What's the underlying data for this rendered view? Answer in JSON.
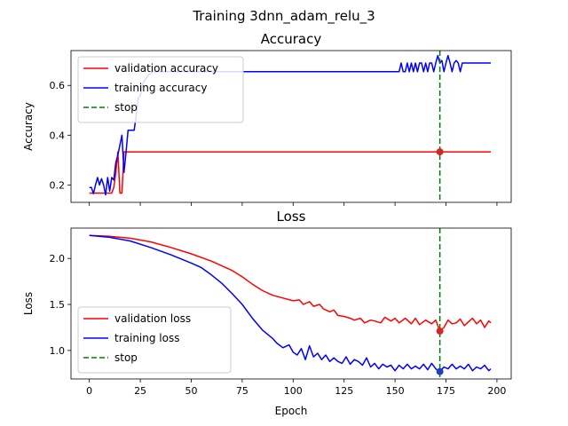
{
  "figure": {
    "suptitle": "Training 3dnn_adam_relu_3"
  },
  "chart_data": [
    {
      "type": "line",
      "title": "Accuracy",
      "xlabel": "",
      "ylabel": "Accuracy",
      "xlim": [
        -9,
        207
      ],
      "ylim": [
        0.13,
        0.74
      ],
      "xticks": [
        0,
        25,
        50,
        75,
        100,
        125,
        150,
        175,
        200
      ],
      "xticklabels_visible": false,
      "yticks": [
        0.2,
        0.4,
        0.6
      ],
      "yticklabels": [
        "0.2",
        "0.4",
        "0.6"
      ],
      "legend": {
        "placement": "top-left"
      },
      "stop_epoch": 172,
      "series": [
        {
          "name": "validation accuracy",
          "color": "#ff0000",
          "style": "solid",
          "points": [
            [
              0,
              0.167
            ],
            [
              1,
              0.167
            ],
            [
              2,
              0.167
            ],
            [
              3,
              0.167
            ],
            [
              4,
              0.167
            ],
            [
              5,
              0.167
            ],
            [
              6,
              0.167
            ],
            [
              7,
              0.167
            ],
            [
              8,
              0.167
            ],
            [
              9,
              0.167
            ],
            [
              10,
              0.167
            ],
            [
              11,
              0.167
            ],
            [
              12,
              0.19
            ],
            [
              13,
              0.25
            ],
            [
              14,
              0.333
            ],
            [
              15,
              0.167
            ],
            [
              16,
              0.167
            ],
            [
              17,
              0.333
            ],
            [
              20,
              0.333
            ],
            [
              40,
              0.333
            ],
            [
              80,
              0.333
            ],
            [
              120,
              0.333
            ],
            [
              160,
              0.333
            ],
            [
              172,
              0.333
            ],
            [
              185,
              0.333
            ],
            [
              197,
              0.333
            ]
          ]
        },
        {
          "name": "training accuracy",
          "color": "#0000ff",
          "style": "solid",
          "points": [
            [
              0,
              0.19
            ],
            [
              1,
              0.19
            ],
            [
              2,
              0.165
            ],
            [
              3,
              0.2
            ],
            [
              4,
              0.23
            ],
            [
              5,
              0.2
            ],
            [
              6,
              0.225
            ],
            [
              7,
              0.2
            ],
            [
              8,
              0.16
            ],
            [
              9,
              0.23
            ],
            [
              10,
              0.175
            ],
            [
              11,
              0.23
            ],
            [
              12,
              0.22
            ],
            [
              13,
              0.29
            ],
            [
              14,
              0.32
            ],
            [
              15,
              0.36
            ],
            [
              16,
              0.4
            ],
            [
              17,
              0.25
            ],
            [
              18,
              0.33
            ],
            [
              19,
              0.42
            ],
            [
              20,
              0.42
            ],
            [
              21,
              0.42
            ],
            [
              22,
              0.42
            ],
            [
              23,
              0.48
            ],
            [
              24,
              0.55
            ],
            [
              25,
              0.56
            ],
            [
              26,
              0.6
            ],
            [
              27,
              0.62
            ],
            [
              28,
              0.63
            ],
            [
              30,
              0.65
            ],
            [
              32,
              0.655
            ],
            [
              40,
              0.655
            ],
            [
              60,
              0.655
            ],
            [
              80,
              0.655
            ],
            [
              100,
              0.655
            ],
            [
              120,
              0.655
            ],
            [
              140,
              0.655
            ],
            [
              152,
              0.655
            ],
            [
              153,
              0.69
            ],
            [
              154,
              0.655
            ],
            [
              155,
              0.655
            ],
            [
              156,
              0.69
            ],
            [
              157,
              0.655
            ],
            [
              158,
              0.69
            ],
            [
              159,
              0.655
            ],
            [
              160,
              0.69
            ],
            [
              161,
              0.655
            ],
            [
              162,
              0.69
            ],
            [
              163,
              0.69
            ],
            [
              164,
              0.655
            ],
            [
              165,
              0.69
            ],
            [
              166,
              0.655
            ],
            [
              167,
              0.69
            ],
            [
              168,
              0.69
            ],
            [
              169,
              0.655
            ],
            [
              170,
              0.69
            ],
            [
              171,
              0.72
            ],
            [
              172,
              0.69
            ],
            [
              173,
              0.7
            ],
            [
              174,
              0.655
            ],
            [
              175,
              0.69
            ],
            [
              176,
              0.72
            ],
            [
              177,
              0.69
            ],
            [
              178,
              0.655
            ],
            [
              179,
              0.69
            ],
            [
              180,
              0.7
            ],
            [
              181,
              0.69
            ],
            [
              182,
              0.655
            ],
            [
              183,
              0.69
            ],
            [
              184,
              0.69
            ],
            [
              185,
              0.69
            ],
            [
              186,
              0.69
            ],
            [
              190,
              0.69
            ],
            [
              197,
              0.69
            ]
          ]
        }
      ],
      "stop_line": {
        "name": "stop",
        "color": "#008000",
        "style": "dashed"
      },
      "markers": [
        {
          "x": 172,
          "y": 0.333,
          "color": "#d62728"
        }
      ]
    },
    {
      "type": "line",
      "title": "Loss",
      "xlabel": "Epoch",
      "ylabel": "Loss",
      "xlim": [
        -9,
        207
      ],
      "ylim": [
        0.69,
        2.33
      ],
      "xticks": [
        0,
        25,
        50,
        75,
        100,
        125,
        150,
        175,
        200
      ],
      "xticklabels": [
        "0",
        "25",
        "50",
        "75",
        "100",
        "125",
        "150",
        "175",
        "200"
      ],
      "yticks": [
        1.0,
        1.5,
        2.0
      ],
      "yticklabels": [
        "1.0",
        "1.5",
        "2.0"
      ],
      "legend": {
        "placement": "bottom-left"
      },
      "stop_epoch": 172,
      "series": [
        {
          "name": "validation loss",
          "color": "#ff0000",
          "style": "solid",
          "points": [
            [
              0,
              2.25
            ],
            [
              10,
              2.24
            ],
            [
              20,
              2.22
            ],
            [
              30,
              2.18
            ],
            [
              40,
              2.12
            ],
            [
              50,
              2.05
            ],
            [
              60,
              1.97
            ],
            [
              70,
              1.87
            ],
            [
              75,
              1.8
            ],
            [
              80,
              1.72
            ],
            [
              85,
              1.65
            ],
            [
              90,
              1.6
            ],
            [
              95,
              1.57
            ],
            [
              100,
              1.54
            ],
            [
              103,
              1.55
            ],
            [
              105,
              1.5
            ],
            [
              108,
              1.53
            ],
            [
              110,
              1.48
            ],
            [
              113,
              1.5
            ],
            [
              115,
              1.45
            ],
            [
              118,
              1.42
            ],
            [
              120,
              1.44
            ],
            [
              122,
              1.38
            ],
            [
              125,
              1.37
            ],
            [
              128,
              1.35
            ],
            [
              130,
              1.33
            ],
            [
              133,
              1.35
            ],
            [
              135,
              1.3
            ],
            [
              138,
              1.33
            ],
            [
              140,
              1.32
            ],
            [
              143,
              1.3
            ],
            [
              145,
              1.36
            ],
            [
              148,
              1.32
            ],
            [
              150,
              1.35
            ],
            [
              152,
              1.3
            ],
            [
              155,
              1.35
            ],
            [
              158,
              1.29
            ],
            [
              160,
              1.35
            ],
            [
              162,
              1.28
            ],
            [
              165,
              1.33
            ],
            [
              168,
              1.29
            ],
            [
              170,
              1.33
            ],
            [
              172,
              1.21
            ],
            [
              174,
              1.25
            ],
            [
              176,
              1.33
            ],
            [
              178,
              1.29
            ],
            [
              180,
              1.3
            ],
            [
              182,
              1.34
            ],
            [
              184,
              1.27
            ],
            [
              186,
              1.31
            ],
            [
              188,
              1.35
            ],
            [
              190,
              1.29
            ],
            [
              192,
              1.33
            ],
            [
              194,
              1.25
            ],
            [
              196,
              1.32
            ],
            [
              197,
              1.3
            ]
          ]
        },
        {
          "name": "training loss",
          "color": "#0000ff",
          "style": "solid",
          "points": [
            [
              0,
              2.25
            ],
            [
              10,
              2.23
            ],
            [
              20,
              2.19
            ],
            [
              30,
              2.12
            ],
            [
              40,
              2.04
            ],
            [
              50,
              1.95
            ],
            [
              55,
              1.9
            ],
            [
              60,
              1.82
            ],
            [
              65,
              1.73
            ],
            [
              70,
              1.62
            ],
            [
              75,
              1.5
            ],
            [
              80,
              1.35
            ],
            [
              85,
              1.22
            ],
            [
              90,
              1.13
            ],
            [
              92,
              1.08
            ],
            [
              95,
              1.03
            ],
            [
              98,
              1.06
            ],
            [
              100,
              0.98
            ],
            [
              102,
              0.95
            ],
            [
              104,
              1.02
            ],
            [
              106,
              0.9
            ],
            [
              108,
              1.05
            ],
            [
              110,
              0.93
            ],
            [
              112,
              0.97
            ],
            [
              114,
              0.9
            ],
            [
              116,
              0.95
            ],
            [
              118,
              0.88
            ],
            [
              120,
              0.92
            ],
            [
              122,
              0.88
            ],
            [
              124,
              0.86
            ],
            [
              126,
              0.93
            ],
            [
              128,
              0.85
            ],
            [
              130,
              0.9
            ],
            [
              132,
              0.88
            ],
            [
              134,
              0.84
            ],
            [
              136,
              0.92
            ],
            [
              138,
              0.82
            ],
            [
              140,
              0.86
            ],
            [
              142,
              0.8
            ],
            [
              144,
              0.85
            ],
            [
              146,
              0.82
            ],
            [
              148,
              0.84
            ],
            [
              150,
              0.78
            ],
            [
              152,
              0.84
            ],
            [
              154,
              0.8
            ],
            [
              156,
              0.85
            ],
            [
              158,
              0.8
            ],
            [
              160,
              0.83
            ],
            [
              162,
              0.8
            ],
            [
              164,
              0.85
            ],
            [
              166,
              0.79
            ],
            [
              168,
              0.86
            ],
            [
              170,
              0.8
            ],
            [
              172,
              0.77
            ],
            [
              174,
              0.82
            ],
            [
              176,
              0.8
            ],
            [
              178,
              0.85
            ],
            [
              180,
              0.8
            ],
            [
              182,
              0.83
            ],
            [
              184,
              0.8
            ],
            [
              186,
              0.85
            ],
            [
              188,
              0.78
            ],
            [
              190,
              0.82
            ],
            [
              192,
              0.8
            ],
            [
              194,
              0.84
            ],
            [
              196,
              0.78
            ],
            [
              197,
              0.8
            ]
          ]
        }
      ],
      "stop_line": {
        "name": "stop",
        "color": "#008000",
        "style": "dashed"
      },
      "markers": [
        {
          "x": 172,
          "y": 1.21,
          "color": "#d62728"
        },
        {
          "x": 172,
          "y": 0.77,
          "color": "#1f3fbf"
        }
      ]
    }
  ]
}
